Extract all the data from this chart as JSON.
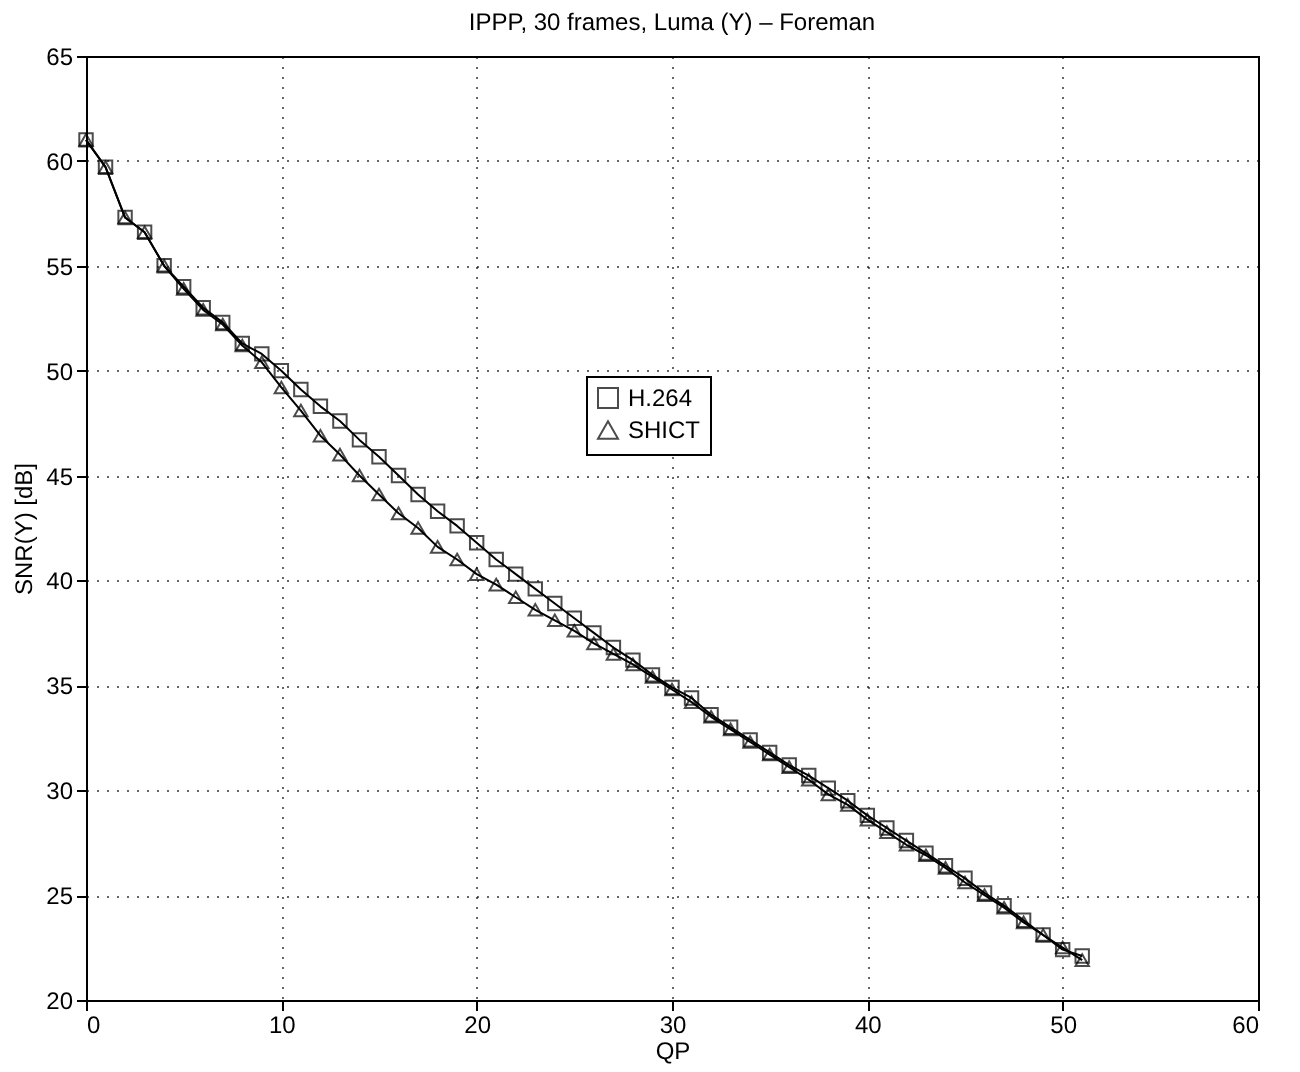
{
  "chart_data": {
    "type": "line",
    "title": "IPPP, 30 frames, Luma (Y) – Foreman",
    "xlabel": "QP",
    "ylabel": "SNR(Y) [dB]",
    "x": [
      0,
      1,
      2,
      3,
      4,
      5,
      6,
      7,
      8,
      9,
      10,
      11,
      12,
      13,
      14,
      15,
      16,
      17,
      18,
      19,
      20,
      21,
      22,
      23,
      24,
      25,
      26,
      27,
      28,
      29,
      30,
      31,
      32,
      33,
      34,
      35,
      36,
      37,
      38,
      39,
      40,
      41,
      42,
      43,
      44,
      45,
      46,
      47,
      48,
      49,
      50,
      51
    ],
    "series": [
      {
        "name": "H.264",
        "color": "#000000",
        "marker": "square",
        "values": [
          61,
          59.7,
          57.3,
          56.6,
          55.0,
          54.0,
          53.0,
          52.3,
          51.3,
          50.8,
          50.0,
          49.1,
          48.3,
          47.6,
          46.7,
          45.9,
          45.0,
          44.1,
          43.3,
          42.6,
          41.8,
          41.0,
          40.3,
          39.6,
          38.9,
          38.2,
          37.5,
          36.8,
          36.2,
          35.5,
          34.9,
          34.4,
          33.6,
          33.0,
          32.4,
          31.8,
          31.2,
          30.7,
          30.1,
          29.5,
          28.8,
          28.2,
          27.6,
          27.0,
          26.4,
          25.8,
          25.1,
          24.5,
          23.8,
          23.1,
          22.4,
          22.1
        ]
      },
      {
        "name": "SHICT",
        "color": "#000000",
        "marker": "triangle",
        "values": [
          61,
          59.7,
          57.3,
          56.6,
          55.0,
          53.9,
          52.9,
          52.2,
          51.2,
          50.4,
          49.2,
          48.1,
          46.9,
          46.0,
          45.0,
          44.1,
          43.2,
          42.5,
          41.6,
          41.0,
          40.3,
          39.8,
          39.2,
          38.6,
          38.1,
          37.6,
          37.0,
          36.5,
          36.0,
          35.4,
          34.8,
          34.2,
          33.5,
          32.9,
          32.3,
          31.7,
          31.1,
          30.5,
          29.8,
          29.3,
          28.6,
          28.0,
          27.4,
          26.9,
          26.3,
          25.6,
          25.0,
          24.4,
          23.7,
          23.1,
          22.5,
          21.9
        ]
      }
    ],
    "xlim": [
      0,
      60
    ],
    "xticks": [
      0,
      10,
      20,
      30,
      40,
      50,
      60
    ],
    "ylim": [
      20,
      65
    ],
    "yticks": [
      20,
      25,
      30,
      35,
      40,
      45,
      50,
      55,
      60,
      65
    ],
    "grid": true,
    "legend": "top",
    "line_style": "solid"
  }
}
